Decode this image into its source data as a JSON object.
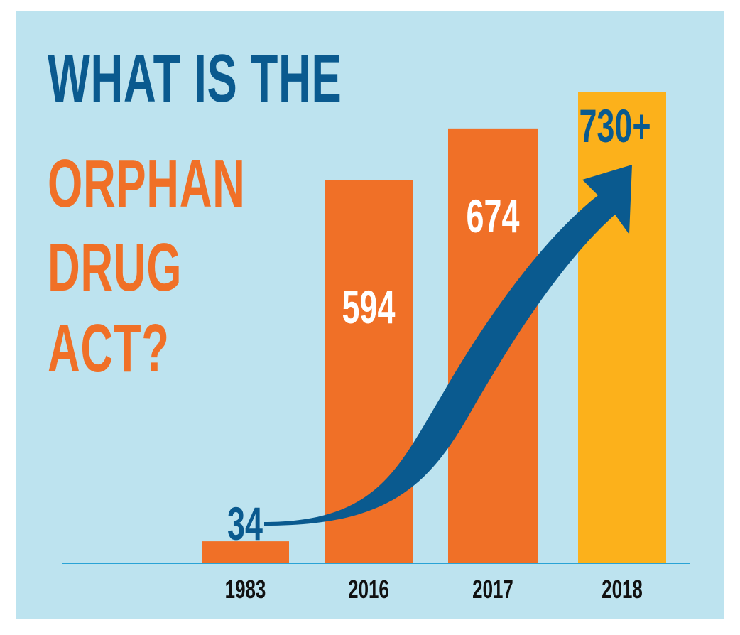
{
  "title": {
    "lines": [
      {
        "text": "WHAT IS THE",
        "color": "#0a5a8f"
      },
      {
        "text": "ORPHAN",
        "color": "#f07027"
      },
      {
        "text": "DRUG",
        "color": "#f07027"
      },
      {
        "text": "ACT?",
        "color": "#f07027"
      }
    ]
  },
  "colors": {
    "background": "#bde3ef",
    "bar_orange": "#f07027",
    "bar_yellow": "#fcb11b",
    "navy": "#0a5a8f",
    "baseline": "#29a3d6",
    "label_white": "#ffffff"
  },
  "chart_data": {
    "type": "bar",
    "categories": [
      "1983",
      "2016",
      "2017",
      "2018"
    ],
    "values": [
      34,
      594,
      674,
      730
    ],
    "value_labels": [
      "34",
      "594",
      "674",
      "730+"
    ],
    "ylim": [
      0,
      750
    ],
    "grid": false,
    "legend": "none",
    "bar_colors": [
      "#f07027",
      "#f07027",
      "#f07027",
      "#fcb11b"
    ],
    "annotation": "upward-trend-arrow"
  }
}
